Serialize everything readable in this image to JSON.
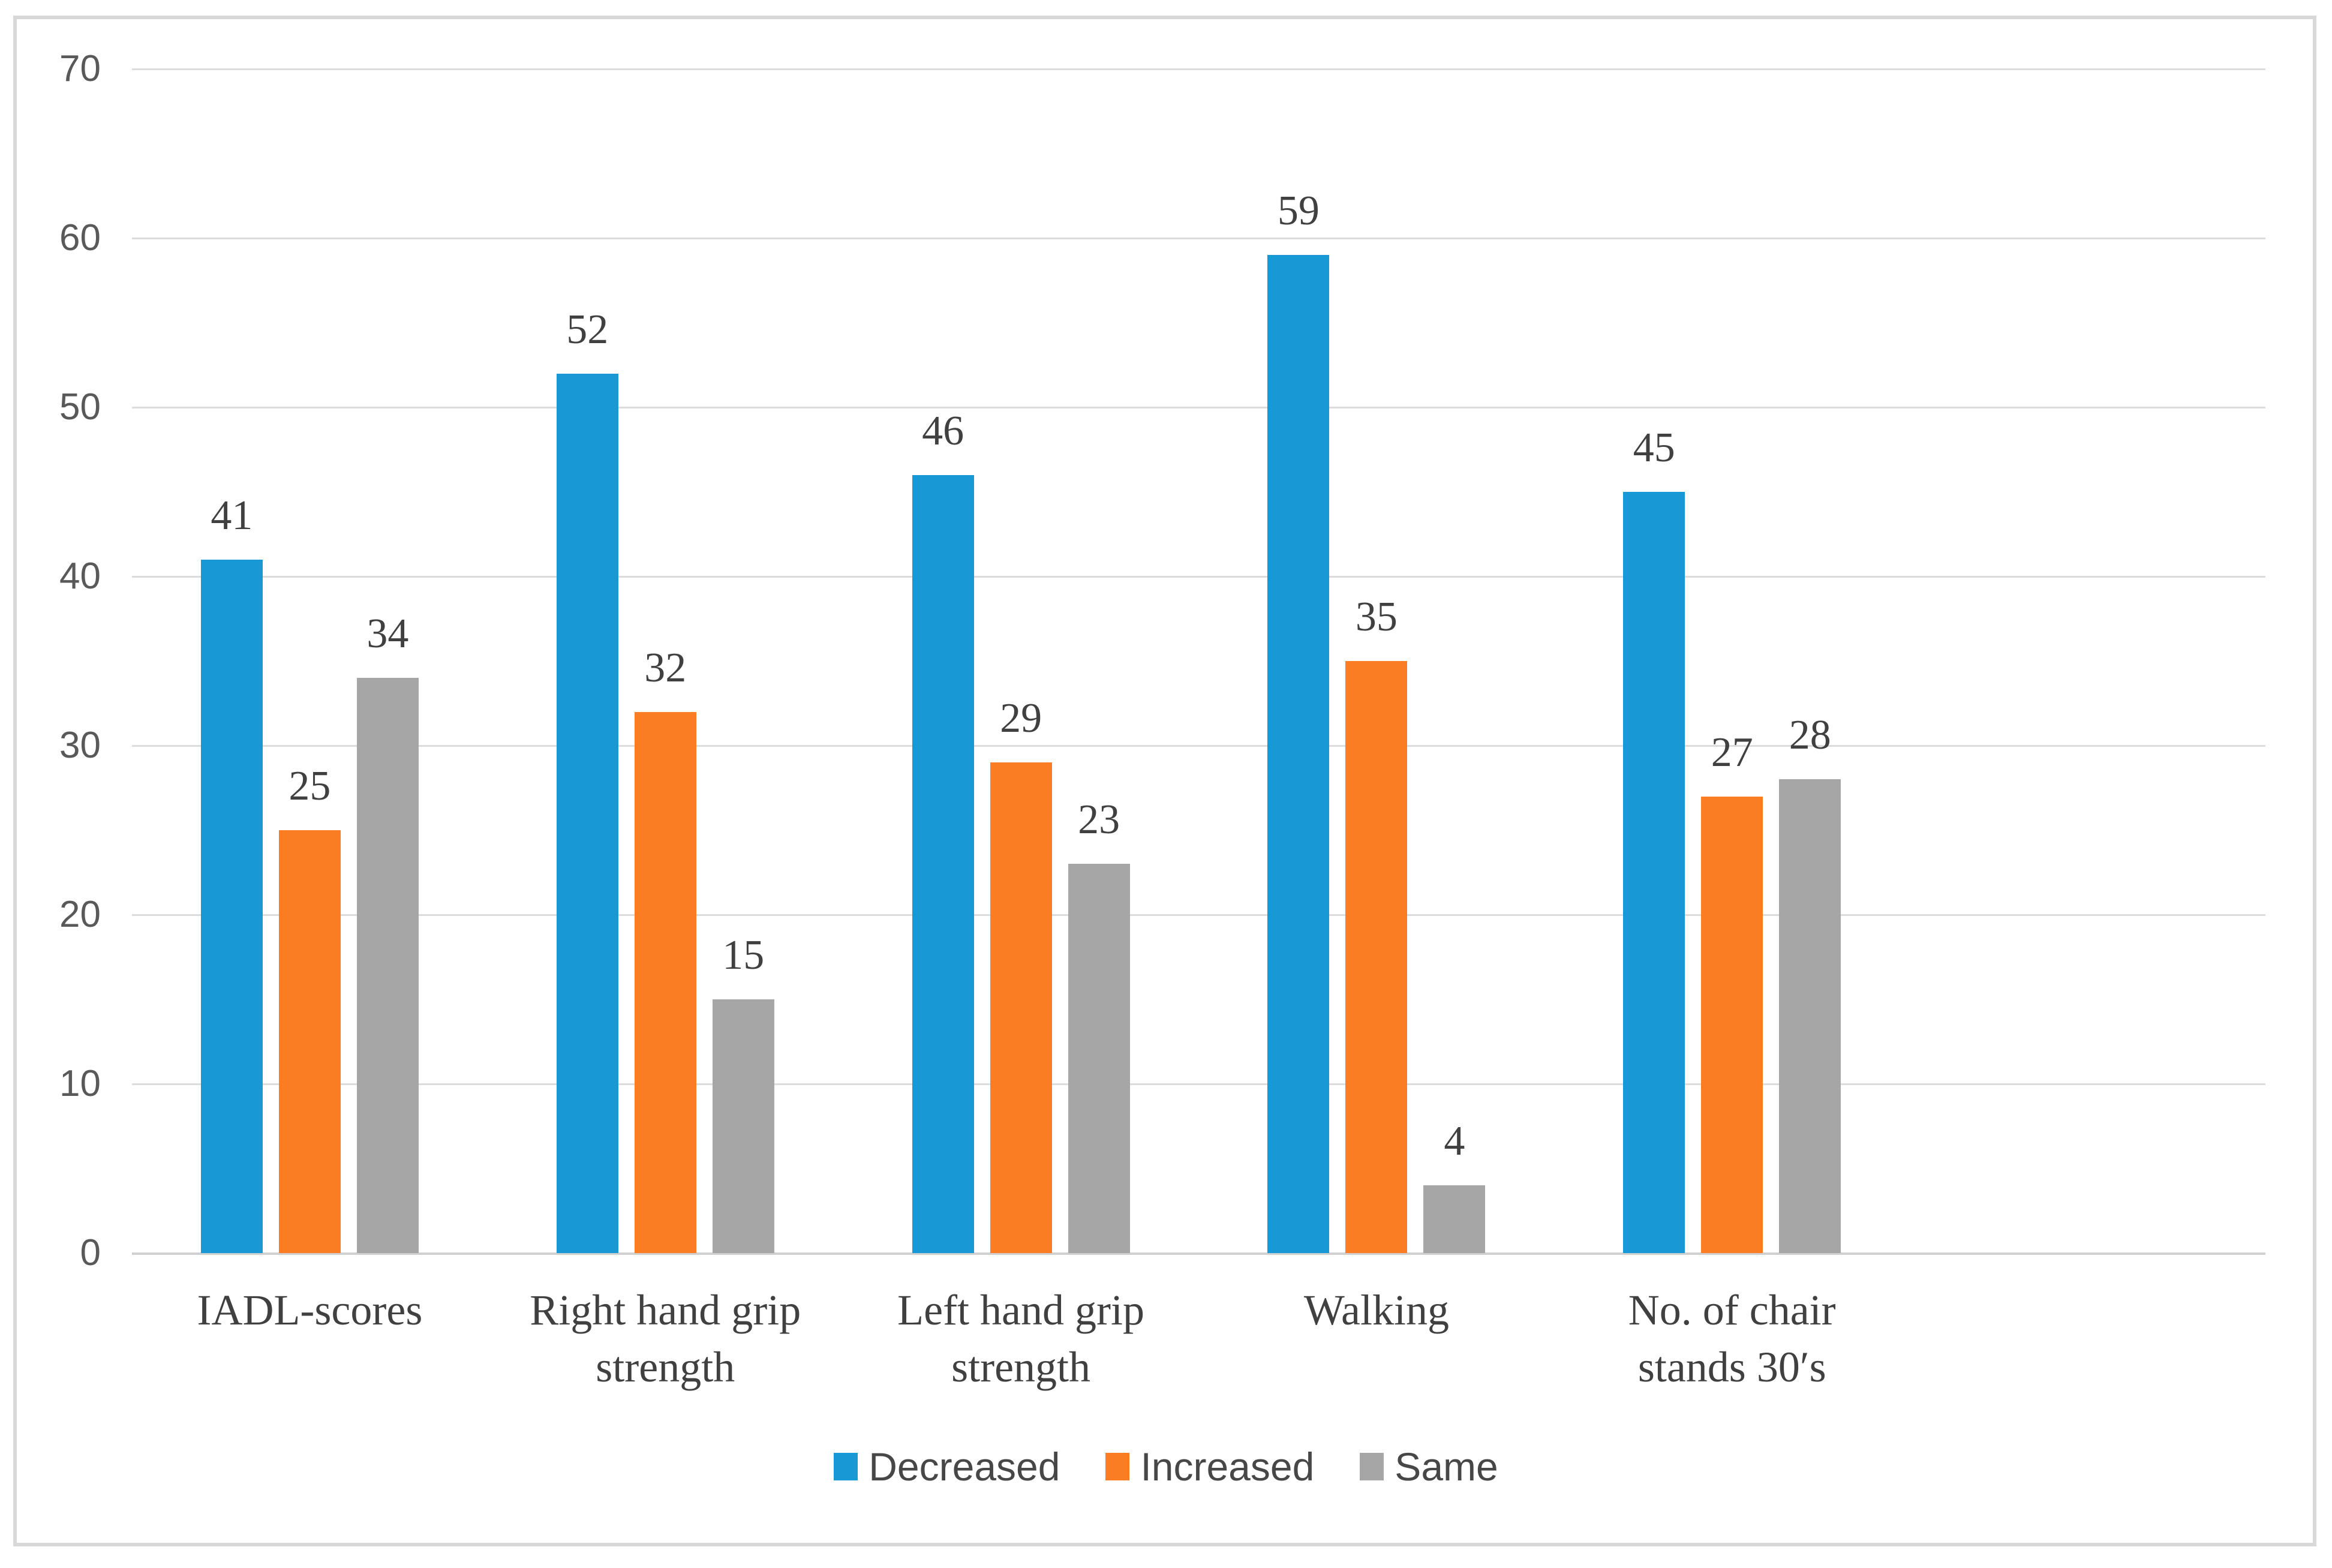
{
  "chart_data": {
    "type": "bar",
    "categories": [
      "IADL-scores",
      "Right hand grip strength",
      "Left hand grip strength",
      "Walking",
      "No. of chair stands 30′s"
    ],
    "series": [
      {
        "name": "Decreased",
        "color": "#1899D6",
        "values": [
          41,
          52,
          46,
          59,
          45
        ]
      },
      {
        "name": "Increased",
        "color": "#FA7D23",
        "values": [
          25,
          32,
          29,
          35,
          27
        ]
      },
      {
        "name": "Same",
        "color": "#A6A6A6",
        "values": [
          34,
          15,
          23,
          4,
          28
        ]
      }
    ],
    "title": "",
    "xlabel": "",
    "ylabel": "",
    "ylim": [
      0,
      70
    ],
    "yticks": [
      0,
      10,
      20,
      30,
      40,
      50,
      60,
      70
    ],
    "grid": true,
    "legend_position": "bottom",
    "data_labels_shown": true,
    "trailing_empty_category_slot": true
  },
  "colors": {
    "decreased": "#1899D6",
    "increased": "#FA7D23",
    "same": "#A6A6A6",
    "gridline": "#DCDCDC",
    "axis_baseline": "#D0D0D0",
    "frame_border": "#D8D8D8",
    "tick_text": "#595959",
    "label_text": "#404040",
    "background": "#FFFFFF"
  }
}
